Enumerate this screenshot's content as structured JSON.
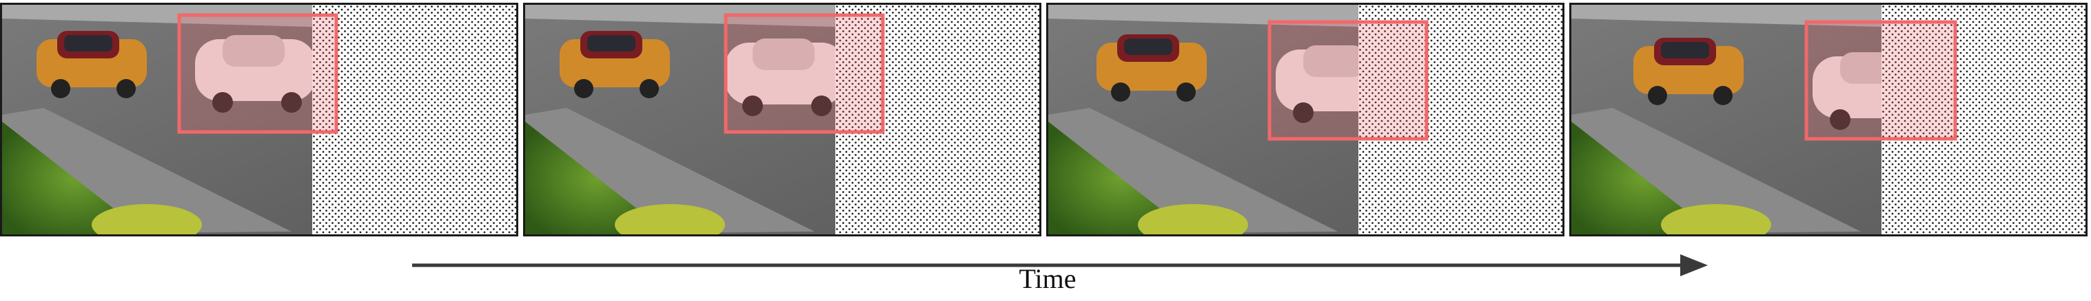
{
  "figure": {
    "axis_label": "Time",
    "frames": [
      {
        "name": "frame-1",
        "box_color": "#f2686a"
      },
      {
        "name": "frame-2",
        "box_color": "#f2686a"
      },
      {
        "name": "frame-3",
        "box_color": "#f2686a"
      },
      {
        "name": "frame-4",
        "box_color": "#f2686a"
      }
    ]
  }
}
